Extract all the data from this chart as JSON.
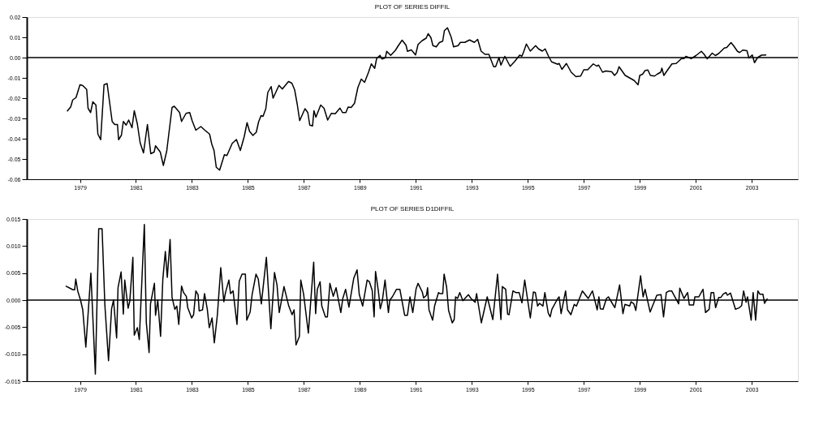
{
  "chart_data": [
    {
      "type": "line",
      "title": "PLOT OF SERIES DIFFIL",
      "color": "#000000",
      "x": [
        1978.54,
        1978.67,
        1978.74,
        1978.86,
        1979.0,
        1979.1,
        1979.24,
        1979.29,
        1979.38,
        1979.46,
        1979.57,
        1979.64,
        1979.74,
        1979.86,
        1979.97,
        1980.15,
        1980.24,
        1980.34,
        1980.38,
        1980.48,
        1980.55,
        1980.65,
        1980.74,
        1980.86,
        1980.94,
        1981.05,
        1981.15,
        1981.27,
        1981.41,
        1981.53,
        1981.65,
        1981.7,
        1981.87,
        1981.98,
        1982.1,
        1982.29,
        1982.37,
        1982.56,
        1982.63,
        1982.79,
        1982.92,
        1983.01,
        1983.14,
        1983.32,
        1983.46,
        1983.63,
        1983.71,
        1983.79,
        1983.87,
        1983.99,
        1984.16,
        1984.25,
        1984.44,
        1984.59,
        1984.73,
        1984.87,
        1984.97,
        1985.06,
        1985.18,
        1985.3,
        1985.38,
        1985.47,
        1985.54,
        1985.64,
        1985.71,
        1985.83,
        1985.9,
        1986.11,
        1986.23,
        1986.45,
        1986.57,
        1986.67,
        1986.76,
        1986.85,
        1987.04,
        1987.14,
        1987.21,
        1987.31,
        1987.36,
        1987.43,
        1987.6,
        1987.72,
        1987.85,
        1987.98,
        1988.12,
        1988.29,
        1988.38,
        1988.5,
        1988.58,
        1988.69,
        1988.81,
        1988.93,
        1989.05,
        1989.17,
        1989.31,
        1989.41,
        1989.53,
        1989.6,
        1989.72,
        1989.79,
        1989.91,
        1989.96,
        1990.1,
        1990.27,
        1990.37,
        1990.51,
        1990.65,
        1990.7,
        1990.84,
        1990.99,
        1991.08,
        1991.22,
        1991.37,
        1991.44,
        1991.54,
        1991.61,
        1991.73,
        1991.84,
        1991.96,
        1992.02,
        1992.13,
        1992.26,
        1992.35,
        1992.51,
        1992.59,
        1992.75,
        1992.92,
        1993.09,
        1993.21,
        1993.33,
        1993.47,
        1993.61,
        1993.78,
        1993.85,
        1993.97,
        1994.04,
        1994.18,
        1994.37,
        1994.52,
        1994.71,
        1994.79,
        1994.85,
        1994.95,
        1995.09,
        1995.28,
        1995.38,
        1995.52,
        1995.62,
        1995.74,
        1995.85,
        1996.07,
        1996.12,
        1996.22,
        1996.38,
        1996.55,
        1996.72,
        1996.89,
        1997.0,
        1997.14,
        1997.34,
        1997.46,
        1997.53,
        1997.67,
        1997.79,
        1998.0,
        1998.1,
        1998.19,
        1998.26,
        1998.48,
        1998.65,
        1998.8,
        1998.94,
        1999.0,
        1999.1,
        1999.19,
        1999.29,
        1999.38,
        1999.53,
        1999.62,
        1999.75,
        1999.79,
        1999.86,
        2000.01,
        2000.15,
        2000.3,
        2000.39,
        2000.49,
        2000.58,
        2000.65,
        2000.84,
        2001.01,
        2001.2,
        2001.3,
        2001.41,
        2001.59,
        2001.7,
        2001.82,
        2002.02,
        2002.11,
        2002.26,
        2002.35,
        2002.49,
        2002.57,
        2002.68,
        2002.83,
        2002.9,
        2003.02,
        2003.1,
        2003.21,
        2003.35,
        2003.52
      ],
      "values": [
        -0.0265,
        -0.0243,
        -0.0209,
        -0.0197,
        -0.0134,
        -0.0138,
        -0.0157,
        -0.025,
        -0.0271,
        -0.0218,
        -0.0234,
        -0.0377,
        -0.0405,
        -0.0134,
        -0.0128,
        -0.0315,
        -0.033,
        -0.033,
        -0.0405,
        -0.0383,
        -0.0315,
        -0.0333,
        -0.0308,
        -0.0346,
        -0.0262,
        -0.0327,
        -0.042,
        -0.047,
        -0.033,
        -0.0474,
        -0.0466,
        -0.0435,
        -0.0466,
        -0.0532,
        -0.0461,
        -0.0246,
        -0.024,
        -0.0271,
        -0.0315,
        -0.0275,
        -0.0271,
        -0.0312,
        -0.0358,
        -0.034,
        -0.0358,
        -0.0377,
        -0.0427,
        -0.0458,
        -0.0541,
        -0.0555,
        -0.0479,
        -0.0483,
        -0.0423,
        -0.0404,
        -0.0458,
        -0.0389,
        -0.0321,
        -0.0364,
        -0.0384,
        -0.0368,
        -0.0318,
        -0.0286,
        -0.029,
        -0.0252,
        -0.0172,
        -0.0143,
        -0.02,
        -0.0137,
        -0.0155,
        -0.0118,
        -0.0126,
        -0.0159,
        -0.0228,
        -0.0311,
        -0.0252,
        -0.0271,
        -0.0333,
        -0.0337,
        -0.0262,
        -0.0294,
        -0.0234,
        -0.025,
        -0.0308,
        -0.0275,
        -0.0277,
        -0.0249,
        -0.0271,
        -0.0271,
        -0.0244,
        -0.0246,
        -0.0225,
        -0.0147,
        -0.0106,
        -0.0122,
        -0.0072,
        -0.0031,
        -0.0053,
        -0.0004,
        0.0011,
        -0.0007,
        -0.0001,
        0.0031,
        0.0011,
        0.0036,
        0.0058,
        0.0086,
        0.0061,
        0.0031,
        0.0038,
        0.0013,
        0.0065,
        0.0083,
        0.0096,
        0.0118,
        0.0098,
        0.0059,
        0.0053,
        0.0074,
        0.0081,
        0.0133,
        0.0147,
        0.0102,
        0.0053,
        0.0059,
        0.0075,
        0.0075,
        0.0087,
        0.0075,
        0.009,
        0.0032,
        0.0016,
        0.0016,
        -0.0045,
        -0.0045,
        0.0,
        -0.0037,
        0.0006,
        -0.0043,
        -0.0021,
        0.0012,
        0.0007,
        0.0028,
        0.0067,
        0.0032,
        0.0059,
        0.0043,
        0.0032,
        0.0043,
        0.0007,
        -0.0021,
        -0.0033,
        -0.0029,
        -0.0058,
        -0.0029,
        -0.0072,
        -0.0094,
        -0.0091,
        -0.006,
        -0.006,
        -0.0031,
        -0.0042,
        -0.0037,
        -0.0072,
        -0.0066,
        -0.007,
        -0.0088,
        -0.0074,
        -0.0045,
        -0.0088,
        -0.0101,
        -0.0113,
        -0.0134,
        -0.0088,
        -0.0082,
        -0.0064,
        -0.0061,
        -0.0088,
        -0.0091,
        -0.0082,
        -0.0072,
        -0.0052,
        -0.0088,
        -0.0058,
        -0.0031,
        -0.0029,
        -0.0018,
        -0.0005,
        -0.0005,
        0.0006,
        -0.0005,
        0.001,
        0.0031,
        0.0016,
        -0.0006,
        0.0022,
        0.001,
        0.002,
        0.0047,
        0.005,
        0.0074,
        0.0059,
        0.0031,
        0.0025,
        0.0037,
        0.0034,
        -0.0002,
        0.0013,
        -0.0025,
        0.0,
        0.0012,
        0.0013
      ],
      "xlim": [
        1977.1,
        2004.65
      ],
      "xticks": [
        1979,
        1981,
        1983,
        1985,
        1987,
        1989,
        1991,
        1993,
        1995,
        1997,
        1999,
        2001,
        2003
      ],
      "ylim": [
        -0.06,
        0.02
      ],
      "yticks": [
        {
          "value": -0.06,
          "label": "-0.06"
        },
        {
          "value": -0.05,
          "label": "-0.05"
        },
        {
          "value": -0.04,
          "label": "-0.04"
        },
        {
          "value": -0.03,
          "label": "-0.03"
        },
        {
          "value": -0.02,
          "label": "-0.02"
        },
        {
          "value": -0.01,
          "label": "-0.01"
        },
        {
          "value": 0,
          "label": "0.00"
        },
        {
          "value": 0.01,
          "label": "0.01"
        },
        {
          "value": 0.02,
          "label": "0.02"
        }
      ],
      "ref_lines": [
        {
          "axis": "y",
          "value": 0
        }
      ]
    },
    {
      "type": "line",
      "title": "PLOT OF SERIES D1DIFFIL",
      "color": "#000000",
      "x": [
        1978.49,
        1978.68,
        1978.75,
        1978.81,
        1978.85,
        1978.92,
        1979.02,
        1979.1,
        1979.21,
        1979.39,
        1979.55,
        1979.67,
        1979.79,
        1979.89,
        1980.02,
        1980.13,
        1980.2,
        1980.31,
        1980.36,
        1980.47,
        1980.55,
        1980.6,
        1980.72,
        1980.78,
        1980.89,
        1980.94,
        1981.05,
        1981.12,
        1981.3,
        1981.37,
        1981.47,
        1981.52,
        1981.66,
        1981.7,
        1981.78,
        1981.88,
        1981.96,
        1982.05,
        1982.12,
        1982.22,
        1982.29,
        1982.39,
        1982.46,
        1982.53,
        1982.63,
        1982.7,
        1982.8,
        1982.85,
        1982.99,
        1983.06,
        1983.14,
        1983.22,
        1983.26,
        1983.38,
        1983.45,
        1983.55,
        1983.62,
        1983.72,
        1983.8,
        1983.91,
        1984.03,
        1984.14,
        1984.2,
        1984.32,
        1984.38,
        1984.47,
        1984.61,
        1984.69,
        1984.79,
        1984.91,
        1984.96,
        1985.08,
        1985.15,
        1985.29,
        1985.37,
        1985.48,
        1985.66,
        1985.82,
        1985.95,
        1986.04,
        1986.12,
        1986.29,
        1986.46,
        1986.58,
        1986.65,
        1986.72,
        1986.84,
        1986.89,
        1986.99,
        1987.16,
        1987.35,
        1987.42,
        1987.48,
        1987.58,
        1987.64,
        1987.77,
        1987.84,
        1987.93,
        1988.05,
        1988.15,
        1988.32,
        1988.39,
        1988.49,
        1988.61,
        1988.78,
        1988.9,
        1988.98,
        1989.1,
        1989.26,
        1989.34,
        1989.44,
        1989.51,
        1989.56,
        1989.66,
        1989.73,
        1989.8,
        1989.9,
        1990.02,
        1990.07,
        1990.16,
        1990.31,
        1990.43,
        1990.6,
        1990.7,
        1990.79,
        1990.89,
        1991.01,
        1991.08,
        1991.23,
        1991.28,
        1991.38,
        1991.42,
        1991.47,
        1991.6,
        1991.67,
        1991.81,
        1991.86,
        1991.96,
        1992.01,
        1992.1,
        1992.17,
        1992.3,
        1992.37,
        1992.42,
        1992.49,
        1992.57,
        1992.68,
        1992.88,
        1992.97,
        1993.12,
        1993.17,
        1993.34,
        1993.55,
        1993.75,
        1993.92,
        1994.04,
        1994.09,
        1994.21,
        1994.28,
        1994.33,
        1994.47,
        1994.57,
        1994.69,
        1994.79,
        1994.89,
        1995.09,
        1995.2,
        1995.27,
        1995.35,
        1995.42,
        1995.54,
        1995.61,
        1995.73,
        1995.8,
        1995.86,
        1996.07,
        1996.12,
        1996.19,
        1996.35,
        1996.42,
        1996.54,
        1996.66,
        1996.74,
        1996.95,
        1997.16,
        1997.31,
        1997.48,
        1997.54,
        1997.59,
        1997.69,
        1997.81,
        1997.88,
        1998.11,
        1998.28,
        1998.4,
        1998.47,
        1998.64,
        1998.69,
        1998.79,
        1998.86,
        1999.03,
        1999.12,
        1999.19,
        1999.37,
        1999.61,
        1999.76,
        1999.85,
        1999.95,
        2000.05,
        2000.14,
        2000.39,
        2000.43,
        2000.58,
        2000.71,
        2000.77,
        2000.92,
        2000.97,
        2001.11,
        2001.26,
        2001.35,
        2001.48,
        2001.55,
        2001.64,
        2001.71,
        2001.82,
        2001.9,
        2001.98,
        2002.08,
        2002.13,
        2002.24,
        2002.42,
        2002.56,
        2002.64,
        2002.71,
        2002.8,
        2002.85,
        2002.98,
        2003.05,
        2003.14,
        2003.22,
        2003.29,
        2003.4,
        2003.46,
        2003.56
      ],
      "values": [
        0.0026,
        0.0021,
        0.0019,
        0.0019,
        0.0039,
        0.0017,
        0.0,
        -0.0018,
        -0.0087,
        0.005,
        -0.0137,
        0.0132,
        0.0132,
        -0.0009,
        -0.0112,
        -0.0016,
        0.0,
        -0.007,
        0.0023,
        0.0052,
        -0.0026,
        0.0037,
        -0.0015,
        -0.0002,
        0.0079,
        -0.0065,
        -0.0051,
        -0.0073,
        0.014,
        -0.0041,
        -0.0097,
        -0.0007,
        0.0031,
        -0.0028,
        0.0,
        -0.0067,
        0.0038,
        0.009,
        0.0042,
        0.0112,
        0.0005,
        -0.0017,
        -0.0011,
        -0.0045,
        0.0026,
        0.0014,
        0.0007,
        -0.0014,
        -0.0033,
        -0.0027,
        0.0017,
        0.001,
        -0.002,
        -0.0018,
        0.0012,
        -0.0017,
        -0.0051,
        -0.0033,
        -0.0079,
        -0.0027,
        0.006,
        -0.0003,
        0.0014,
        0.0037,
        0.0012,
        0.0017,
        -0.0045,
        0.0035,
        0.0048,
        0.0048,
        -0.0037,
        -0.0022,
        0.001,
        0.0048,
        0.0039,
        -0.0007,
        0.0079,
        -0.0053,
        0.0051,
        0.0028,
        -0.0023,
        0.0025,
        -0.0011,
        -0.0027,
        -0.0018,
        -0.0083,
        -0.0067,
        0.0037,
        0.0011,
        -0.0061,
        0.007,
        -0.0025,
        0.002,
        0.0034,
        -0.0011,
        -0.0031,
        -0.0031,
        0.0031,
        0.0007,
        0.0023,
        -0.0023,
        0.0003,
        0.002,
        -0.0013,
        0.004,
        0.0056,
        0.001,
        -0.0011,
        0.0037,
        0.0034,
        0.0018,
        -0.0031,
        0.0053,
        0.0017,
        -0.0016,
        -0.0002,
        0.0037,
        -0.0023,
        0.0,
        0.0006,
        0.002,
        0.002,
        -0.0028,
        -0.0028,
        0.0006,
        -0.0023,
        0.0021,
        0.0031,
        0.0015,
        0.0004,
        0.0009,
        0.0023,
        -0.0018,
        -0.0037,
        -0.0011,
        0.0014,
        0.0012,
        0.0012,
        0.0048,
        0.0024,
        -0.0019,
        -0.0042,
        -0.0036,
        0.0006,
        0.0003,
        0.0014,
        -0.0001,
        0.001,
        0.0003,
        -0.0004,
        0.0012,
        -0.0042,
        0.0006,
        -0.0036,
        0.0048,
        -0.0036,
        0.0025,
        0.002,
        -0.0026,
        -0.0027,
        0.0017,
        0.0014,
        0.0014,
        -0.0005,
        0.0037,
        -0.0033,
        0.0015,
        0.0014,
        -0.0011,
        -0.0006,
        -0.0011,
        0.0014,
        -0.0024,
        -0.0031,
        -0.0017,
        0.0003,
        0.0006,
        -0.0025,
        0.0017,
        -0.0018,
        -0.0027,
        -0.0008,
        -0.0011,
        0.0017,
        0.0003,
        0.0017,
        -0.0018,
        0.0006,
        -0.0016,
        -0.0017,
        0.0003,
        0.0006,
        -0.0014,
        0.0028,
        -0.0025,
        -0.0008,
        -0.0011,
        -0.0003,
        -0.0007,
        -0.0019,
        0.0045,
        0.0006,
        0.002,
        -0.0022,
        0.0009,
        0.001,
        -0.0031,
        0.0014,
        0.0017,
        0.0017,
        -0.0007,
        0.0022,
        0.0003,
        0.0014,
        -0.0009,
        -0.0009,
        0.0006,
        0.0006,
        0.002,
        -0.0023,
        -0.0017,
        0.0014,
        0.0014,
        -0.0014,
        0.0005,
        0.0005,
        0.0011,
        0.0014,
        0.0009,
        0.0013,
        -0.0017,
        -0.0014,
        -0.001,
        0.0017,
        -0.0004,
        0.0006,
        -0.0037,
        0.0014,
        -0.0037,
        0.0017,
        0.0011,
        0.0011,
        -0.0006,
        0.0003
      ],
      "xlim": [
        1977.1,
        2004.65
      ],
      "xticks": [
        1979,
        1981,
        1983,
        1985,
        1987,
        1989,
        1991,
        1993,
        1995,
        1997,
        1999,
        2001,
        2003
      ],
      "ylim": [
        -0.015,
        0.015
      ],
      "yticks": [
        -0.015,
        {
          "value": -0.01,
          "label": "-0.010"
        },
        -0.005,
        {
          "value": 0,
          "label": "0.000"
        },
        0.005,
        {
          "value": 0.01,
          "label": "0.010"
        },
        0.015
      ],
      "ref_lines": [
        {
          "axis": "y",
          "value": 0
        }
      ]
    }
  ]
}
